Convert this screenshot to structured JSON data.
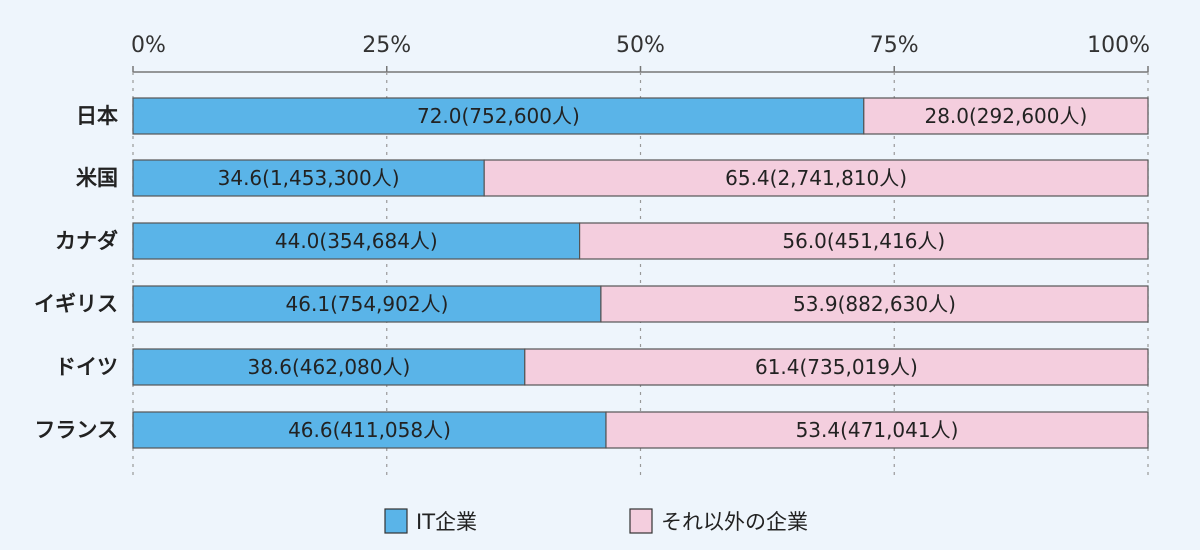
{
  "chart_data": {
    "type": "bar",
    "orientation": "horizontal",
    "stacked": true,
    "percent_stacked": true,
    "categories": [
      "日本",
      "米国",
      "カナダ",
      "イギリス",
      "ドイツ",
      "フランス"
    ],
    "series": [
      {
        "name": "IT企業",
        "values": [
          72.0,
          34.6,
          44.0,
          46.1,
          38.6,
          46.6
        ],
        "labels": [
          "72.0(752,600人)",
          "34.6(1,453,300人)",
          "44.0(354,684人)",
          "46.1(754,902人)",
          "38.6(462,080人)",
          "46.6(411,058人)"
        ]
      },
      {
        "name": "それ以外の企業",
        "values": [
          28.0,
          65.4,
          56.0,
          53.9,
          61.4,
          53.4
        ],
        "labels": [
          "28.0(292,600人)",
          "65.4(2,741,810人)",
          "56.0(451,416人)",
          "53.9(882,630人)",
          "61.4(735,019人)",
          "53.4(471,041人)"
        ]
      }
    ],
    "x_ticks": [
      "0%",
      "25%",
      "50%",
      "75%",
      "100%"
    ],
    "xlim": [
      0,
      100
    ],
    "x_axis_position": "top",
    "grid": true,
    "legend_position": "bottom-center",
    "title": "",
    "xlabel": "",
    "ylabel": ""
  },
  "colors": {
    "background": "#eef5fc",
    "it_companies": "#5ab4e8",
    "other_companies": "#f4cede",
    "bar_border": "#555555",
    "grid": "#999999"
  }
}
